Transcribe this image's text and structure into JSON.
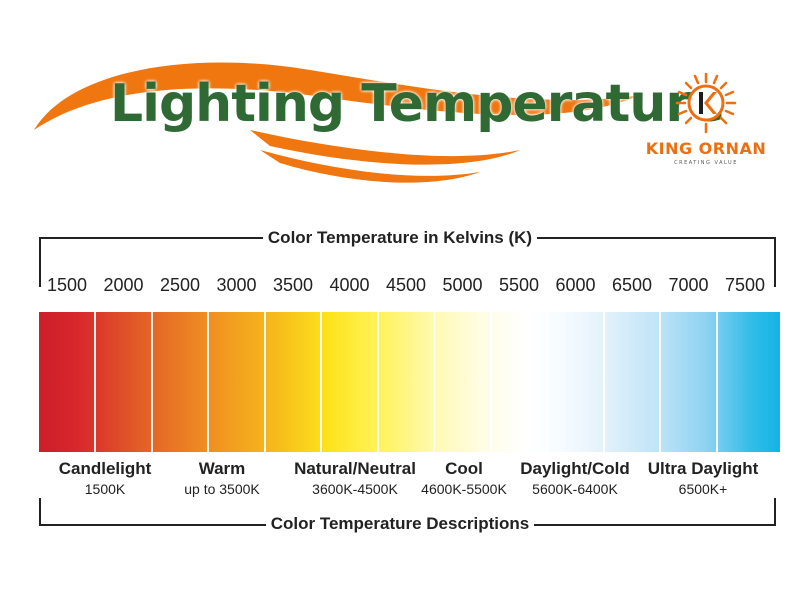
{
  "header": {
    "title": "Lighting Temperature",
    "brand_name": "KING ORNAN",
    "brand_tagline": "CREATING VALUE",
    "logo_icon": "k-sun-logo-icon"
  },
  "colors": {
    "title_green": "#2f6a34",
    "swoosh_orange": "#f0760f",
    "brand_orange": "#ee6f10",
    "frame_line": "#222222"
  },
  "scale": {
    "title": "Color Temperature in Kelvins (K)",
    "unit": "K",
    "ticks": [
      "1500",
      "2000",
      "2500",
      "3000",
      "3500",
      "4000",
      "4500",
      "5000",
      "5500",
      "6000",
      "6500",
      "7000",
      "7500"
    ]
  },
  "descriptions": {
    "title": "Color Temperature Descriptions",
    "items": [
      {
        "name": "Candlelight",
        "range": "1500K"
      },
      {
        "name": "Warm",
        "range": "up to 3500K"
      },
      {
        "name": "Natural/Neutral",
        "range": "3600K-4500K"
      },
      {
        "name": "Cool",
        "range": "4600K-5500K"
      },
      {
        "name": "Daylight/Cold",
        "range": "5600K-6400K"
      },
      {
        "name": "Ultra Daylight",
        "range": "6500K+"
      }
    ]
  }
}
